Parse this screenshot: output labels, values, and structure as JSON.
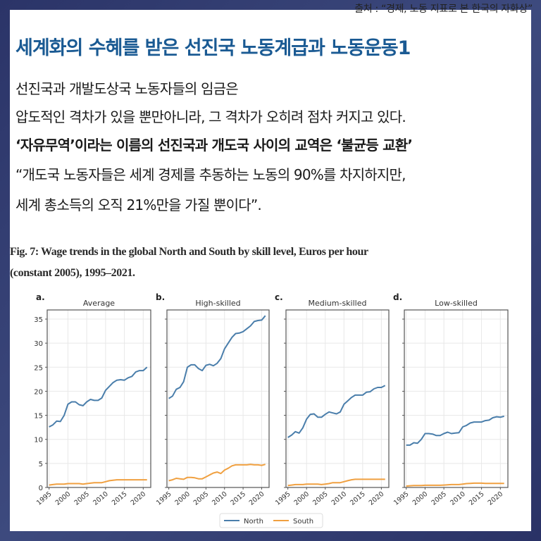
{
  "source": "출처 : “경제, 노동 지표로 본 한국의 자화상”",
  "title": "세계화의 수혜를 받은 선진국 노동계급과 노동운동1",
  "body": {
    "line1": "선진국과 개발도상국 노동자들의 임금은",
    "line2": "압도적인 격차가 있을 뿐만아니라, 그 격차가 오히려 점차 커지고 있다.",
    "line3": "‘자유무역’이라는 이름의 선진국과 개도국 사이의 교역은 ‘불균등 교환’",
    "line4": "“개도국 노동자들은 세계 경제를 추동하는 노동의 90%를 차지하지만,",
    "line5": "세계 총소득의 오직 21%만을 가질 뿐이다”."
  },
  "figure": {
    "caption_line1": "Fig. 7: Wage trends in the global North and South by skill level, Euros per hour",
    "caption_line2": "(constant 2005), 1995–2021."
  },
  "colors": {
    "background": "#2f3a70",
    "title": "#1a5a93",
    "north": "#4a7eab",
    "south": "#f0a040"
  },
  "chart_data": [
    {
      "type": "line",
      "panel_label": "a.",
      "title": "Average",
      "x": [
        1995,
        1996,
        1997,
        1998,
        1999,
        2000,
        2001,
        2002,
        2003,
        2004,
        2005,
        2006,
        2007,
        2008,
        2009,
        2010,
        2011,
        2012,
        2013,
        2014,
        2015,
        2016,
        2017,
        2018,
        2019,
        2020,
        2021
      ],
      "series": [
        {
          "name": "North",
          "values": [
            12.6,
            13.0,
            13.8,
            13.7,
            15.0,
            17.3,
            17.8,
            17.8,
            17.2,
            17.0,
            17.8,
            18.3,
            18.1,
            18.1,
            18.6,
            20.2,
            21.0,
            21.8,
            22.3,
            22.4,
            22.3,
            22.8,
            23.1,
            24.0,
            24.3,
            24.3,
            25.0
          ]
        },
        {
          "name": "South",
          "values": [
            0.5,
            0.6,
            0.7,
            0.7,
            0.7,
            0.8,
            0.8,
            0.8,
            0.8,
            0.7,
            0.8,
            0.9,
            1.0,
            1.0,
            1.0,
            1.2,
            1.4,
            1.5,
            1.6,
            1.6,
            1.6,
            1.6,
            1.6,
            1.6,
            1.6,
            1.6,
            1.6
          ]
        }
      ],
      "xticks": [
        "1995",
        "2000",
        "2005",
        "2010",
        "2015",
        "2020"
      ],
      "yticks": [
        "0",
        "5",
        "10",
        "15",
        "20",
        "25",
        "30",
        "35"
      ],
      "ylim": [
        0,
        37
      ],
      "grid": true
    },
    {
      "type": "line",
      "panel_label": "b.",
      "title": "High-skilled",
      "x": [
        1995,
        1996,
        1997,
        1998,
        1999,
        2000,
        2001,
        2002,
        2003,
        2004,
        2005,
        2006,
        2007,
        2008,
        2009,
        2010,
        2011,
        2012,
        2013,
        2014,
        2015,
        2016,
        2017,
        2018,
        2019,
        2020,
        2021
      ],
      "series": [
        {
          "name": "North",
          "values": [
            18.5,
            19.0,
            20.4,
            20.8,
            22.0,
            25.0,
            25.5,
            25.5,
            24.7,
            24.3,
            25.4,
            25.6,
            25.3,
            25.8,
            26.8,
            28.8,
            30.0,
            31.2,
            32.0,
            32.1,
            32.4,
            33.0,
            33.6,
            34.5,
            34.7,
            34.8,
            35.7
          ]
        },
        {
          "name": "South",
          "values": [
            1.4,
            1.6,
            1.9,
            1.8,
            1.7,
            2.1,
            2.1,
            2.0,
            1.8,
            1.8,
            2.2,
            2.6,
            3.0,
            3.2,
            2.9,
            3.6,
            4.0,
            4.5,
            4.7,
            4.7,
            4.7,
            4.7,
            4.8,
            4.7,
            4.7,
            4.6,
            4.8
          ]
        }
      ],
      "xticks": [
        "1995",
        "2000",
        "2005",
        "2010",
        "2015",
        "2020"
      ],
      "ylim": [
        0,
        37
      ],
      "grid": true
    },
    {
      "type": "line",
      "panel_label": "c.",
      "title": "Medium-skilled",
      "x": [
        1995,
        1996,
        1997,
        1998,
        1999,
        2000,
        2001,
        2002,
        2003,
        2004,
        2005,
        2006,
        2007,
        2008,
        2009,
        2010,
        2011,
        2012,
        2013,
        2014,
        2015,
        2016,
        2017,
        2018,
        2019,
        2020,
        2021
      ],
      "series": [
        {
          "name": "North",
          "values": [
            10.4,
            10.9,
            11.6,
            11.3,
            12.4,
            14.2,
            15.2,
            15.3,
            14.6,
            14.6,
            15.2,
            15.7,
            15.5,
            15.3,
            15.7,
            17.3,
            18.0,
            18.7,
            19.2,
            19.2,
            19.2,
            19.8,
            19.9,
            20.5,
            20.8,
            20.8,
            21.2
          ]
        },
        {
          "name": "South",
          "values": [
            0.4,
            0.5,
            0.6,
            0.6,
            0.6,
            0.7,
            0.7,
            0.7,
            0.7,
            0.6,
            0.7,
            0.8,
            1.0,
            1.0,
            1.0,
            1.2,
            1.4,
            1.6,
            1.7,
            1.7,
            1.7,
            1.7,
            1.7,
            1.7,
            1.7,
            1.7,
            1.7
          ]
        }
      ],
      "xticks": [
        "1995",
        "2000",
        "2005",
        "2010",
        "2015",
        "2020"
      ],
      "ylim": [
        0,
        37
      ],
      "grid": true
    },
    {
      "type": "line",
      "panel_label": "d.",
      "title": "Low-skilled",
      "x": [
        1995,
        1996,
        1997,
        1998,
        1999,
        2000,
        2001,
        2002,
        2003,
        2004,
        2005,
        2006,
        2007,
        2008,
        2009,
        2010,
        2011,
        2012,
        2013,
        2014,
        2015,
        2016,
        2017,
        2018,
        2019,
        2020,
        2021
      ],
      "series": [
        {
          "name": "North",
          "values": [
            8.8,
            8.8,
            9.3,
            9.2,
            10.0,
            11.2,
            11.2,
            11.1,
            10.8,
            10.8,
            11.2,
            11.5,
            11.2,
            11.3,
            11.4,
            12.6,
            12.9,
            13.4,
            13.6,
            13.6,
            13.6,
            13.9,
            14.0,
            14.5,
            14.7,
            14.6,
            14.8
          ]
        },
        {
          "name": "South",
          "values": [
            0.3,
            0.35,
            0.4,
            0.4,
            0.4,
            0.45,
            0.45,
            0.45,
            0.45,
            0.45,
            0.5,
            0.55,
            0.6,
            0.6,
            0.6,
            0.7,
            0.8,
            0.85,
            0.9,
            0.9,
            0.9,
            0.85,
            0.85,
            0.85,
            0.85,
            0.85,
            0.85
          ]
        }
      ],
      "xticks": [
        "1995",
        "2000",
        "2005",
        "2010",
        "2015",
        "2020"
      ],
      "ylim": [
        0,
        37
      ],
      "grid": true
    }
  ],
  "legend": {
    "items": [
      {
        "label": "North",
        "color": "#4a7eab"
      },
      {
        "label": "South",
        "color": "#f0a040"
      }
    ],
    "position": "bottom-center"
  }
}
